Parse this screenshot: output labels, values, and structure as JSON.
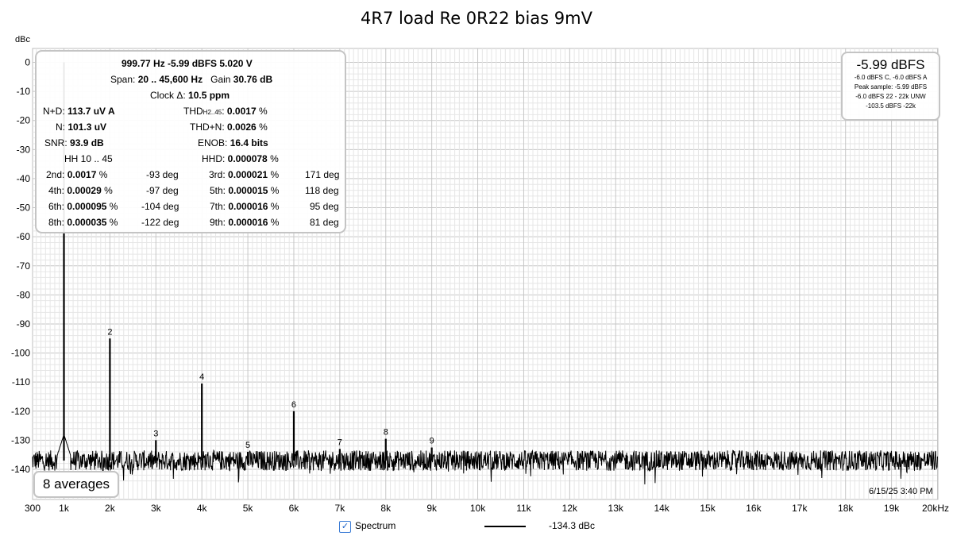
{
  "chart_data": {
    "type": "line",
    "title": "4R7 load Re 0R22 bias 9mV",
    "ylabel": "dBc",
    "xlabel": "",
    "x_scale": "linear",
    "xlim": [
      300,
      20000
    ],
    "ylim": [
      -145,
      2
    ],
    "grid": true,
    "x_ticks": [
      {
        "value": 300,
        "label": "300"
      },
      {
        "value": 1000,
        "label": "1k"
      },
      {
        "value": 2000,
        "label": "2k"
      },
      {
        "value": 3000,
        "label": "3k"
      },
      {
        "value": 4000,
        "label": "4k"
      },
      {
        "value": 5000,
        "label": "5k"
      },
      {
        "value": 6000,
        "label": "6k"
      },
      {
        "value": 7000,
        "label": "7k"
      },
      {
        "value": 8000,
        "label": "8k"
      },
      {
        "value": 9000,
        "label": "9k"
      },
      {
        "value": 10000,
        "label": "10k"
      },
      {
        "value": 11000,
        "label": "11k"
      },
      {
        "value": 12000,
        "label": "12k"
      },
      {
        "value": 13000,
        "label": "13k"
      },
      {
        "value": 14000,
        "label": "14k"
      },
      {
        "value": 15000,
        "label": "15k"
      },
      {
        "value": 16000,
        "label": "16k"
      },
      {
        "value": 17000,
        "label": "17k"
      },
      {
        "value": 18000,
        "label": "18k"
      },
      {
        "value": 19000,
        "label": "19k"
      },
      {
        "value": 20000,
        "label": "20kHz"
      }
    ],
    "y_ticks": [
      {
        "value": 0,
        "label": "0"
      },
      {
        "value": -10,
        "label": "-10"
      },
      {
        "value": -20,
        "label": "-20"
      },
      {
        "value": -30,
        "label": "-30"
      },
      {
        "value": -40,
        "label": "-40"
      },
      {
        "value": -50,
        "label": "-50"
      },
      {
        "value": -60,
        "label": "-60"
      },
      {
        "value": -70,
        "label": "-70"
      },
      {
        "value": -80,
        "label": "-80"
      },
      {
        "value": -90,
        "label": "-90"
      },
      {
        "value": -100,
        "label": "-100"
      },
      {
        "value": -110,
        "label": "-110"
      },
      {
        "value": -120,
        "label": "-120"
      },
      {
        "value": -130,
        "label": "-130"
      },
      {
        "value": -140,
        "label": "-140"
      }
    ],
    "noise_floor_dbc": -137,
    "peaks": [
      {
        "label": "",
        "x": 1000,
        "y": 0
      },
      {
        "label": "2",
        "x": 2000,
        "y": -95
      },
      {
        "label": "3",
        "x": 3000,
        "y": -130
      },
      {
        "label": "4",
        "x": 4000,
        "y": -110.5
      },
      {
        "label": "5",
        "x": 5000,
        "y": -134
      },
      {
        "label": "6",
        "x": 6000,
        "y": -120
      },
      {
        "label": "7",
        "x": 7000,
        "y": -133
      },
      {
        "label": "8",
        "x": 8000,
        "y": -129.5
      },
      {
        "label": "9",
        "x": 9000,
        "y": -132.5
      }
    ],
    "series": [
      {
        "name": "Spectrum",
        "color": "#000000"
      }
    ]
  },
  "info": {
    "line1": "999.77 Hz  -5.99 dBFS  5.020 V",
    "span_label": "Span: ",
    "span_value": "20 .. 45,600 Hz",
    "gain_label": "Gain ",
    "gain_value": "30.76 dB",
    "clock_label": "Clock Δ: ",
    "clock_value": "10.5 ppm",
    "nd_label": "N+D: ",
    "nd_value": "113.7 uV A",
    "thd_label": "THD",
    "thd_sub": "H2..45",
    "thd_label2": ": ",
    "thd_value": "0.0017",
    "n_label": "N: ",
    "n_value": "101.3 uV",
    "thdn_label": "THD+N: ",
    "thdn_value": "0.0026",
    "snr_label": "SNR: ",
    "snr_value": "93.9 dB",
    "enob_label": "ENOB: ",
    "enob_value": "16.4 bits",
    "hh_label": "HH 10 .. 45",
    "hhd_label": "HHD: ",
    "hhd_value": "0.000078",
    "pct": "%",
    "harmonics": [
      {
        "label": "2nd:",
        "value": "0.0017",
        "phase": "-93 deg"
      },
      {
        "label": "3rd:",
        "value": "0.000021",
        "phase": "171 deg"
      },
      {
        "label": "4th:",
        "value": "0.00029",
        "phase": "-97 deg"
      },
      {
        "label": "5th:",
        "value": "0.000015",
        "phase": "118 deg"
      },
      {
        "label": "6th:",
        "value": "0.000095",
        "phase": "-104 deg"
      },
      {
        "label": "7th:",
        "value": "0.000016",
        "phase": "95 deg"
      },
      {
        "label": "8th:",
        "value": "0.000035",
        "phase": "-122 deg"
      },
      {
        "label": "9th:",
        "value": "0.000016",
        "phase": "81 deg"
      }
    ]
  },
  "level": {
    "main": "-5.99 dBFS",
    "lines": [
      "-6.0 dBFS C, -6.0 dBFS A",
      "Peak sample: -5.99 dBFS",
      "-6.0 dBFS 22 - 22k UNW",
      "-103.5 dBFS -22k"
    ]
  },
  "averages": "8 averages",
  "timestamp": "6/15/25 3:40 PM",
  "legend": {
    "checked": true,
    "check_glyph": "✓",
    "series_label": "Spectrum",
    "readout": "-134.3 dBc"
  }
}
